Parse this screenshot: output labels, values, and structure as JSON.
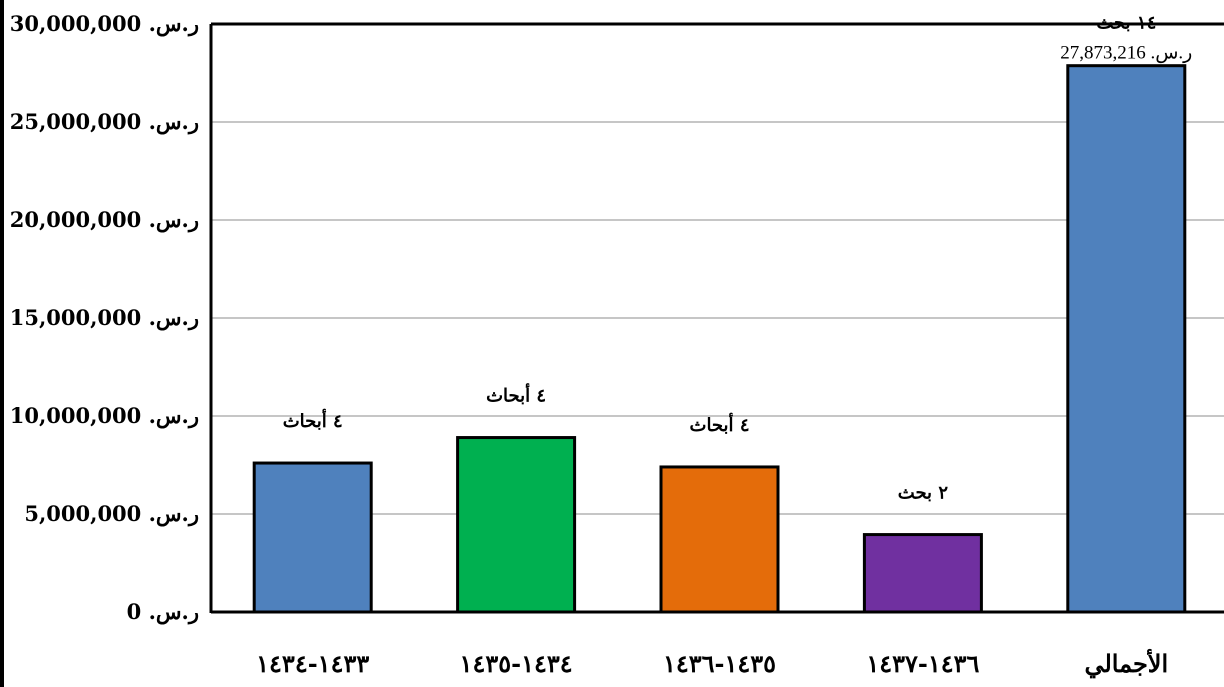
{
  "chart_data": {
    "type": "bar",
    "title": "",
    "xlabel": "",
    "ylabel": "",
    "ylim": [
      0,
      30000000
    ],
    "ytick_values": [
      0,
      5000000,
      10000000,
      15000000,
      20000000,
      25000000,
      30000000
    ],
    "ytick_labels": [
      "ر.س.‏ 0",
      "ر.س.‏ 5,000,000",
      "ر.س.‏ 10,000,000",
      "ر.س.‏ 15,000,000",
      "ر.س.‏ 20,000,000",
      "ر.س.‏ 25,000,000",
      "ر.س.‏ 30,000,000"
    ],
    "categories": [
      "١٤٣٣-١٤٣٤",
      "١٤٣٤-١٤٣٥",
      "١٤٣٥-١٤٣٦",
      "١٤٣٦-١٤٣٧",
      "الأجمالي"
    ],
    "values": [
      7600000,
      8900000,
      7400000,
      3950000,
      27873216
    ],
    "bar_colors": [
      "#4f81bd",
      "#00b050",
      "#e46c0a",
      "#7030a0",
      "#4f81bd"
    ],
    "count_labels": [
      "٤ أبحاث",
      "٤ أبحاث",
      "٤ أبحاث",
      "٢ بحث",
      "١٤ بحث"
    ],
    "value_labels": [
      "",
      "",
      "",
      "",
      "ر.س.‏ 27,873,216"
    ],
    "grid": true,
    "legend": "none"
  }
}
